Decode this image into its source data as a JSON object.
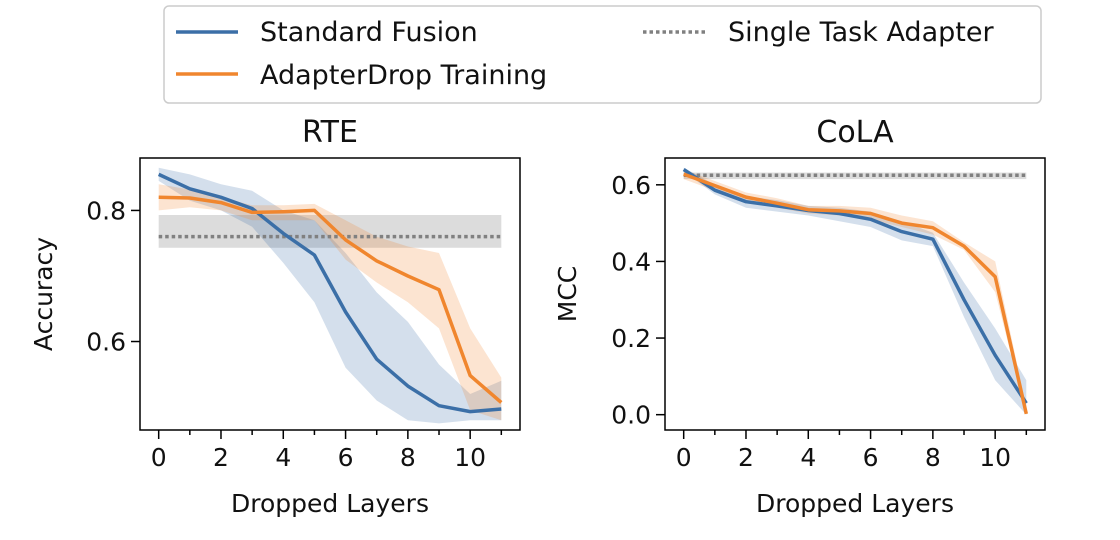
{
  "chart_data": [
    {
      "type": "line",
      "title": "RTE",
      "xlabel": "Dropped Layers",
      "ylabel": "Accuracy",
      "xlim": [
        -0.6,
        11.6
      ],
      "ylim": [
        0.465,
        0.88
      ],
      "x_ticks": [
        0,
        2,
        4,
        6,
        8,
        10
      ],
      "y_ticks": [
        0.6,
        0.8
      ],
      "y_tick_labels": [
        "0.6",
        "0.8"
      ],
      "x": [
        0,
        1,
        2,
        3,
        4,
        5,
        6,
        7,
        8,
        9,
        10,
        11
      ],
      "series": [
        {
          "name": "Standard Fusion",
          "color": "#3b6fa7",
          "values": [
            0.855,
            0.833,
            0.82,
            0.803,
            0.765,
            0.732,
            0.645,
            0.573,
            0.532,
            0.502,
            0.493,
            0.497
          ],
          "band_upper": [
            0.865,
            0.855,
            0.84,
            0.83,
            0.8,
            0.785,
            0.735,
            0.675,
            0.63,
            0.565,
            0.52,
            0.54
          ],
          "band_lower": [
            0.845,
            0.815,
            0.8,
            0.775,
            0.72,
            0.66,
            0.56,
            0.51,
            0.48,
            0.475,
            0.48,
            0.48
          ]
        },
        {
          "name": "AdapterDrop Training",
          "color": "#f0862e",
          "values": [
            0.82,
            0.819,
            0.812,
            0.797,
            0.798,
            0.8,
            0.755,
            0.723,
            0.7,
            0.679,
            0.548,
            0.507
          ],
          "band_upper": [
            0.84,
            0.832,
            0.82,
            0.808,
            0.808,
            0.81,
            0.785,
            0.76,
            0.745,
            0.735,
            0.62,
            0.545
          ],
          "band_lower": [
            0.8,
            0.805,
            0.8,
            0.785,
            0.785,
            0.785,
            0.725,
            0.69,
            0.66,
            0.62,
            0.495,
            0.48
          ]
        }
      ],
      "reference": {
        "name": "Single Task Adapter",
        "color": "#808080",
        "value": 0.76,
        "band": [
          0.743,
          0.793
        ]
      }
    },
    {
      "type": "line",
      "title": "CoLA",
      "xlabel": "Dropped Layers",
      "ylabel": "MCC",
      "xlim": [
        -0.6,
        11.6
      ],
      "ylim": [
        -0.04,
        0.67
      ],
      "x_ticks": [
        0,
        2,
        4,
        6,
        8,
        10
      ],
      "y_ticks": [
        0.0,
        0.2,
        0.4,
        0.6
      ],
      "y_tick_labels": [
        "0.0",
        "0.2",
        "0.4",
        "0.6"
      ],
      "x": [
        0,
        1,
        2,
        3,
        4,
        5,
        6,
        7,
        8,
        9,
        10,
        11
      ],
      "series": [
        {
          "name": "Standard Fusion",
          "color": "#3b6fa7",
          "values": [
            0.64,
            0.586,
            0.556,
            0.545,
            0.533,
            0.525,
            0.51,
            0.478,
            0.458,
            0.3,
            0.155,
            0.03
          ],
          "band_upper": [
            0.645,
            0.6,
            0.57,
            0.56,
            0.545,
            0.54,
            0.53,
            0.505,
            0.475,
            0.345,
            0.225,
            0.09
          ],
          "band_lower": [
            0.635,
            0.575,
            0.54,
            0.53,
            0.52,
            0.505,
            0.49,
            0.455,
            0.44,
            0.255,
            0.09,
            0.0
          ]
        },
        {
          "name": "AdapterDrop Training",
          "color": "#f0862e",
          "values": [
            0.628,
            0.598,
            0.568,
            0.552,
            0.535,
            0.532,
            0.525,
            0.5,
            0.488,
            0.44,
            0.36,
            0.002
          ],
          "band_upper": [
            0.64,
            0.61,
            0.58,
            0.565,
            0.545,
            0.545,
            0.54,
            0.52,
            0.505,
            0.45,
            0.4,
            0.02
          ],
          "band_lower": [
            0.615,
            0.585,
            0.555,
            0.54,
            0.525,
            0.52,
            0.51,
            0.49,
            0.47,
            0.43,
            0.32,
            0.0
          ]
        }
      ],
      "reference": {
        "name": "Single Task Adapter",
        "color": "#808080",
        "value": 0.625,
        "band": [
          0.615,
          0.632
        ]
      }
    }
  ],
  "legend": {
    "placement": "top-center",
    "items": [
      {
        "label": "Standard Fusion",
        "color": "#3b6fa7",
        "style": "solid"
      },
      {
        "label": "AdapterDrop Training",
        "color": "#f0862e",
        "style": "solid"
      },
      {
        "label": "Single Task Adapter",
        "color": "#808080",
        "style": "dotted"
      }
    ]
  }
}
